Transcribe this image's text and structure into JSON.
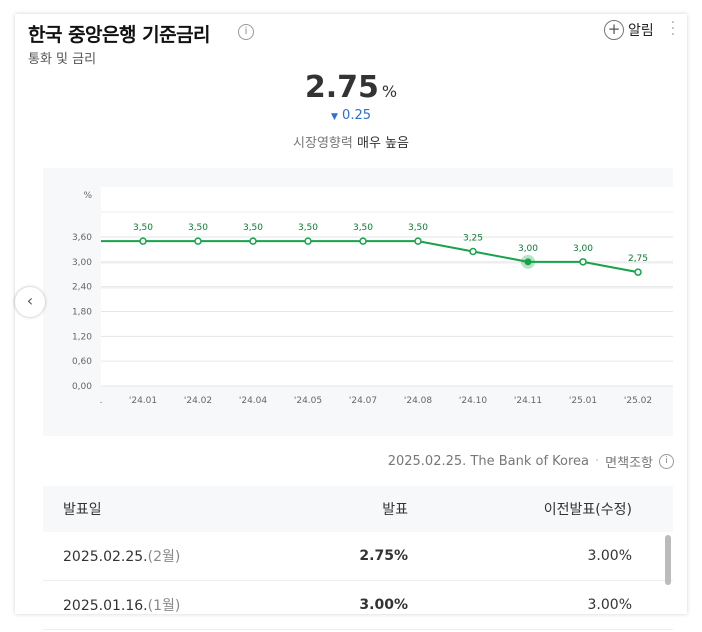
{
  "header": {
    "title": "한국 중앙은행 기준금리",
    "subtitle": "통화 및 금리",
    "alarm_label": "알림"
  },
  "summary": {
    "value": "2.75",
    "unit": "%",
    "change": "0.25",
    "influence_label": "시장영향력",
    "influence_value": "매우 높음"
  },
  "chart_data": {
    "type": "line",
    "ylabel": "%",
    "ylim": [
      0,
      3.6
    ],
    "yticks": [
      "0.00",
      "0.60",
      "1.20",
      "1.80",
      "2.40",
      "3.00",
      "3.60"
    ],
    "categories": [
      "'24.01.",
      "'24.02.",
      "'24.04.",
      "'24.05.",
      "'24.07.",
      "'24.08.",
      "'24.10.",
      "'24.11.",
      "'25.01.",
      "'25.02."
    ],
    "values": [
      3.5,
      3.5,
      3.5,
      3.5,
      3.5,
      3.5,
      3.25,
      3.0,
      3.0,
      2.75
    ],
    "labels": [
      "3.50",
      "3.50",
      "3.50",
      "3.50",
      "3.50",
      "3.50",
      "3.25",
      "3.00",
      "3.00",
      "2.75"
    ],
    "highlight_index": 7,
    "color": "#16a34a"
  },
  "source": {
    "text": "2025.02.25. The Bank of Korea",
    "disclaimer": "면책조항"
  },
  "table": {
    "headers": [
      "발표일",
      "발표",
      "이전발표(수정)"
    ],
    "rows": [
      {
        "date": "2025.02.25.",
        "month": "(2월)",
        "value": "2.75%",
        "prev": "3.00%"
      },
      {
        "date": "2025.01.16.",
        "month": "(1월)",
        "value": "3.00%",
        "prev": "3.00%"
      }
    ]
  }
}
